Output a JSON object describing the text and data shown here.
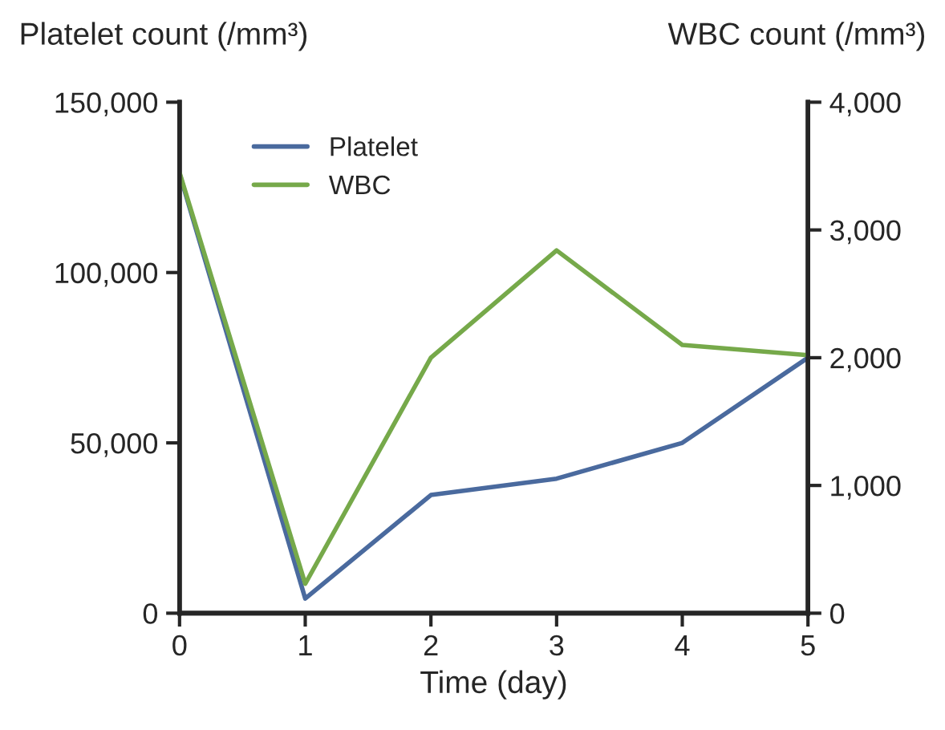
{
  "chart_data": {
    "type": "line",
    "xlabel": "Time (day)",
    "ylabel": "Platelet count (/mm³)",
    "y2label": "WBC count (/mm³)",
    "x": [
      0,
      1,
      2,
      3,
      4,
      5
    ],
    "xlim": [
      0,
      5
    ],
    "xticks": [
      0,
      1,
      2,
      3,
      4,
      5
    ],
    "ylim": [
      0,
      150000
    ],
    "yticks": [
      {
        "value": 0,
        "label": "0"
      },
      {
        "value": 50000,
        "label": "50,000"
      },
      {
        "value": 100000,
        "label": "100,000"
      },
      {
        "value": 150000,
        "label": "150,000"
      }
    ],
    "y2lim": [
      0,
      4000
    ],
    "y2ticks": [
      {
        "value": 0,
        "label": "0"
      },
      {
        "value": 1000,
        "label": "1,000"
      },
      {
        "value": 2000,
        "label": "2,000"
      },
      {
        "value": 3000,
        "label": "3,000"
      },
      {
        "value": 4000,
        "label": "4,000"
      }
    ],
    "series": [
      {
        "name": "Platelet",
        "color": "#4a6a9e",
        "values": [
          129000,
          4300,
          34700,
          39500,
          50000,
          75000
        ]
      },
      {
        "name": "WBC",
        "color": "#76a94a",
        "axis": "y2",
        "values": [
          3450,
          230,
          2000,
          2840,
          2100,
          2020
        ]
      }
    ],
    "legend": "top left",
    "grid": false,
    "marker": "none",
    "line_style": "solid"
  }
}
